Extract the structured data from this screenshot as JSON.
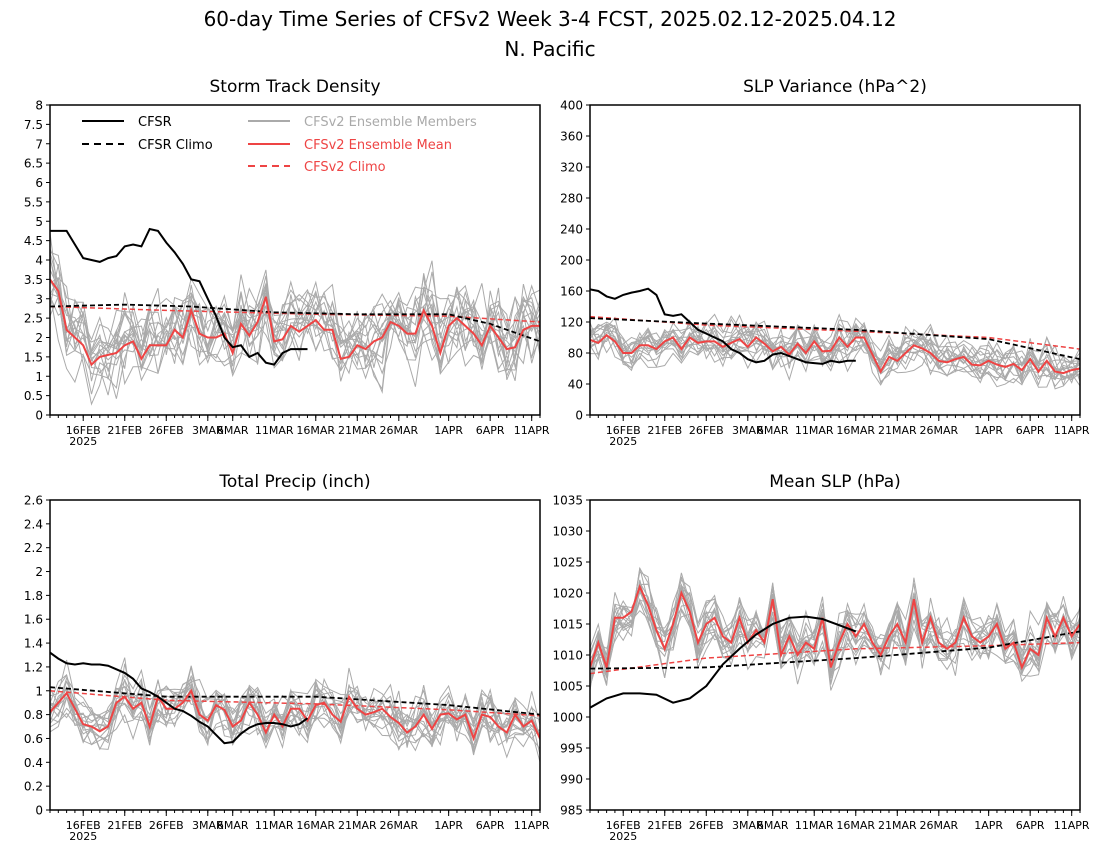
{
  "figure": {
    "title": "60-day Time Series of CFSv2 Week 3-4 FCST, 2025.02.12-2025.04.12",
    "subtitle": "N. Pacific"
  },
  "legend": {
    "entries": [
      {
        "label": "CFSR",
        "color": "#000000",
        "dash": "solid"
      },
      {
        "label": "CFSR Climo",
        "color": "#000000",
        "dash": "dashed"
      },
      {
        "label": "CFSv2 Ensemble Members",
        "color": "#aaaaaa",
        "dash": "solid"
      },
      {
        "label": "CFSv2 Ensemble Mean",
        "color": "#ee4444",
        "dash": "solid"
      },
      {
        "label": "CFSv2 Climo",
        "color": "#ee4444",
        "dash": "dashed"
      }
    ]
  },
  "colors": {
    "cfsr": "#000000",
    "members": "#aaaaaa",
    "ens_mean": "#ee4444",
    "cfsv2_climo": "#ee4444"
  },
  "chart_data": [
    {
      "type": "line",
      "title": "Storm Track Density",
      "xlabel": "",
      "ylabel": "",
      "x_range": [
        "2025-02-12",
        "2025-04-12"
      ],
      "x_ticks": [
        "16FEB",
        "21FEB",
        "26FEB",
        "3MAR",
        "6MAR",
        "11MAR",
        "16MAR",
        "21MAR",
        "26MAR",
        "1APR",
        "6APR",
        "11APR"
      ],
      "x_tick_year": "2025",
      "ylim": [
        0,
        8
      ],
      "y_ticks": [
        "0",
        "0.5",
        "1",
        "1.5",
        "2",
        "2.5",
        "3",
        "3.5",
        "4",
        "4.5",
        "5",
        "5.5",
        "6",
        "6.5",
        "7",
        "7.5",
        "8"
      ],
      "grid": false,
      "legend": "top-left",
      "cfsr": {
        "x": [
          "2025-02-12",
          "2025-02-13",
          "2025-02-14",
          "2025-02-15",
          "2025-02-16",
          "2025-02-17",
          "2025-02-18",
          "2025-02-19",
          "2025-02-20",
          "2025-02-21",
          "2025-02-22",
          "2025-02-23",
          "2025-02-24",
          "2025-02-25",
          "2025-02-26",
          "2025-02-27",
          "2025-02-28",
          "2025-03-01",
          "2025-03-02",
          "2025-03-03",
          "2025-03-04",
          "2025-03-05",
          "2025-03-06",
          "2025-03-07",
          "2025-03-08",
          "2025-03-09",
          "2025-03-10",
          "2025-03-11",
          "2025-03-12",
          "2025-03-13",
          "2025-03-14",
          "2025-03-15"
        ],
        "y": [
          4.75,
          4.75,
          4.75,
          4.4,
          4.05,
          4.0,
          3.95,
          4.05,
          4.1,
          4.35,
          4.4,
          4.35,
          4.8,
          4.75,
          4.45,
          4.2,
          3.9,
          3.5,
          3.45,
          3.0,
          2.55,
          2.0,
          1.75,
          1.8,
          1.5,
          1.6,
          1.35,
          1.3,
          1.6,
          1.7,
          1.7,
          1.7
        ]
      },
      "cfsr_climo": {
        "x": [
          "2025-02-12",
          "2025-02-21",
          "2025-03-01",
          "2025-03-11",
          "2025-03-21",
          "2025-04-01",
          "2025-04-06",
          "2025-04-12"
        ],
        "y": [
          2.8,
          2.85,
          2.8,
          2.65,
          2.6,
          2.6,
          2.35,
          1.9
        ]
      },
      "cfsv2_climo": {
        "x": [
          "2025-02-12",
          "2025-02-26",
          "2025-03-16",
          "2025-04-01",
          "2025-04-12"
        ],
        "y": [
          2.8,
          2.7,
          2.6,
          2.55,
          2.4
        ]
      },
      "ens_mean": {
        "start": "2025-02-12",
        "y": [
          3.5,
          3.2,
          2.2,
          2.0,
          1.8,
          1.3,
          1.5,
          1.55,
          1.6,
          1.8,
          1.9,
          1.45,
          1.8,
          1.8,
          1.8,
          2.2,
          2.0,
          2.7,
          2.1,
          2.0,
          2.0,
          2.1,
          1.6,
          2.35,
          2.05,
          2.4,
          3.05,
          1.9,
          1.95,
          2.3,
          2.15,
          2.3,
          2.45,
          2.2,
          2.2,
          1.45,
          1.5,
          1.8,
          1.7,
          1.9,
          2.0,
          2.4,
          2.3,
          2.1,
          2.1,
          2.7,
          2.3,
          1.6,
          2.3,
          2.5,
          2.3,
          2.1,
          1.8,
          2.3,
          2.0,
          1.7,
          1.75,
          2.2,
          2.3,
          2.3
        ]
      },
      "members": {
        "count": 16,
        "spread": 0.85,
        "seed": 11
      }
    },
    {
      "type": "line",
      "title": "SLP Variance (hPa^2)",
      "xlabel": "",
      "ylabel": "",
      "x_range": [
        "2025-02-12",
        "2025-04-12"
      ],
      "x_ticks": [
        "16FEB",
        "21FEB",
        "26FEB",
        "3MAR",
        "6MAR",
        "11MAR",
        "16MAR",
        "21MAR",
        "26MAR",
        "1APR",
        "6APR",
        "11APR"
      ],
      "x_tick_year": "2025",
      "ylim": [
        0,
        400
      ],
      "y_ticks": [
        "0",
        "40",
        "80",
        "120",
        "160",
        "200",
        "240",
        "280",
        "320",
        "360",
        "400"
      ],
      "grid": false,
      "cfsr": {
        "x": [
          "2025-02-12",
          "2025-02-13",
          "2025-02-14",
          "2025-02-15",
          "2025-02-16",
          "2025-02-17",
          "2025-02-18",
          "2025-02-19",
          "2025-02-20",
          "2025-02-21",
          "2025-02-22",
          "2025-02-23",
          "2025-02-24",
          "2025-02-25",
          "2025-02-26",
          "2025-02-27",
          "2025-02-28",
          "2025-03-01",
          "2025-03-02",
          "2025-03-03",
          "2025-03-04",
          "2025-03-05",
          "2025-03-06",
          "2025-03-07",
          "2025-03-08",
          "2025-03-09",
          "2025-03-10",
          "2025-03-11",
          "2025-03-12",
          "2025-03-13",
          "2025-03-14",
          "2025-03-15",
          "2025-03-16"
        ],
        "y": [
          162,
          160,
          153,
          150,
          155,
          158,
          160,
          163,
          155,
          130,
          128,
          130,
          120,
          110,
          105,
          100,
          95,
          85,
          80,
          72,
          68,
          70,
          78,
          80,
          76,
          72,
          68,
          67,
          66,
          70,
          68,
          70,
          70
        ]
      },
      "cfsr_climo": {
        "x": [
          "2025-02-12",
          "2025-02-26",
          "2025-03-16",
          "2025-04-01",
          "2025-04-12"
        ],
        "y": [
          125,
          118,
          110,
          98,
          72
        ]
      },
      "cfsv2_climo": {
        "x": [
          "2025-02-12",
          "2025-02-26",
          "2025-03-16",
          "2025-04-01",
          "2025-04-12"
        ],
        "y": [
          127,
          116,
          108,
          100,
          85
        ]
      },
      "ens_mean": {
        "start": "2025-02-12",
        "y": [
          97,
          93,
          103,
          95,
          80,
          80,
          90,
          90,
          85,
          95,
          100,
          85,
          100,
          93,
          95,
          95,
          88,
          93,
          98,
          88,
          100,
          92,
          82,
          88,
          78,
          92,
          80,
          95,
          82,
          83,
          100,
          88,
          100,
          100,
          78,
          56,
          75,
          70,
          80,
          90,
          86,
          80,
          70,
          68,
          72,
          75,
          65,
          64,
          70,
          65,
          62,
          66,
          58,
          72,
          56,
          70,
          56,
          54,
          58,
          60
        ]
      },
      "members": {
        "count": 16,
        "spread": 20,
        "seed": 23
      }
    },
    {
      "type": "line",
      "title": "Total Precip (inch)",
      "xlabel": "",
      "ylabel": "",
      "x_range": [
        "2025-02-12",
        "2025-04-12"
      ],
      "x_ticks": [
        "16FEB",
        "21FEB",
        "26FEB",
        "3MAR",
        "6MAR",
        "11MAR",
        "16MAR",
        "21MAR",
        "26MAR",
        "1APR",
        "6APR",
        "11APR"
      ],
      "x_tick_year": "2025",
      "ylim": [
        0,
        2.6
      ],
      "y_ticks": [
        "0",
        "0.2",
        "0.4",
        "0.6",
        "0.8",
        "1",
        "1.2",
        "1.4",
        "1.6",
        "1.8",
        "2",
        "2.2",
        "2.4",
        "2.6"
      ],
      "grid": false,
      "cfsr": {
        "x": [
          "2025-02-12",
          "2025-02-13",
          "2025-02-14",
          "2025-02-15",
          "2025-02-16",
          "2025-02-17",
          "2025-02-18",
          "2025-02-19",
          "2025-02-20",
          "2025-02-21",
          "2025-02-22",
          "2025-02-23",
          "2025-02-24",
          "2025-02-25",
          "2025-02-26",
          "2025-02-27",
          "2025-02-28",
          "2025-03-01",
          "2025-03-02",
          "2025-03-03",
          "2025-03-04",
          "2025-03-05",
          "2025-03-06",
          "2025-03-07",
          "2025-03-08",
          "2025-03-09",
          "2025-03-10",
          "2025-03-11",
          "2025-03-12",
          "2025-03-13",
          "2025-03-14",
          "2025-03-15"
        ],
        "y": [
          1.32,
          1.27,
          1.23,
          1.22,
          1.23,
          1.22,
          1.22,
          1.21,
          1.18,
          1.15,
          1.1,
          1.02,
          0.99,
          0.95,
          0.9,
          0.85,
          0.83,
          0.79,
          0.74,
          0.7,
          0.63,
          0.56,
          0.57,
          0.64,
          0.69,
          0.72,
          0.73,
          0.73,
          0.72,
          0.7,
          0.72,
          0.77
        ]
      },
      "cfsr_climo": {
        "x": [
          "2025-02-12",
          "2025-02-26",
          "2025-03-16",
          "2025-04-01",
          "2025-04-12"
        ],
        "y": [
          1.03,
          0.95,
          0.95,
          0.88,
          0.8
        ]
      },
      "cfsv2_climo": {
        "x": [
          "2025-02-12",
          "2025-02-26",
          "2025-03-16",
          "2025-04-01",
          "2025-04-12"
        ],
        "y": [
          1.0,
          0.92,
          0.89,
          0.84,
          0.79
        ]
      },
      "ens_mean": {
        "start": "2025-02-12",
        "y": [
          0.82,
          0.9,
          0.98,
          0.85,
          0.72,
          0.7,
          0.66,
          0.7,
          0.9,
          0.95,
          0.85,
          0.9,
          0.7,
          0.95,
          0.85,
          0.85,
          0.9,
          1.0,
          0.8,
          0.75,
          0.88,
          0.84,
          0.7,
          0.75,
          0.9,
          0.8,
          0.65,
          0.8,
          0.7,
          0.85,
          0.85,
          0.75,
          0.88,
          0.9,
          0.8,
          0.74,
          0.95,
          0.85,
          0.8,
          0.82,
          0.85,
          0.78,
          0.73,
          0.65,
          0.7,
          0.8,
          0.68,
          0.8,
          0.81,
          0.76,
          0.8,
          0.6,
          0.8,
          0.78,
          0.7,
          0.65,
          0.8,
          0.7,
          0.75,
          0.6
        ]
      },
      "members": {
        "count": 16,
        "spread": 0.17,
        "seed": 37
      }
    },
    {
      "type": "line",
      "title": "Mean SLP (hPa)",
      "xlabel": "",
      "ylabel": "",
      "x_range": [
        "2025-02-12",
        "2025-04-12"
      ],
      "x_ticks": [
        "16FEB",
        "21FEB",
        "26FEB",
        "3MAR",
        "6MAR",
        "11MAR",
        "16MAR",
        "21MAR",
        "26MAR",
        "1APR",
        "6APR",
        "11APR"
      ],
      "x_tick_year": "2025",
      "ylim": [
        985,
        1035
      ],
      "y_ticks": [
        "985",
        "990",
        "995",
        "1000",
        "1005",
        "1010",
        "1015",
        "1020",
        "1025",
        "1030",
        "1035"
      ],
      "grid": false,
      "cfsr": {
        "x": [
          "2025-02-12",
          "2025-02-14",
          "2025-02-16",
          "2025-02-18",
          "2025-02-20",
          "2025-02-22",
          "2025-02-24",
          "2025-02-26",
          "2025-02-28",
          "2025-03-02",
          "2025-03-04",
          "2025-03-06",
          "2025-03-08",
          "2025-03-10",
          "2025-03-12",
          "2025-03-14",
          "2025-03-16"
        ],
        "y": [
          1001.5,
          1003.0,
          1003.8,
          1003.8,
          1003.6,
          1002.3,
          1003.0,
          1005.0,
          1008.5,
          1011.0,
          1013.3,
          1015.0,
          1016.0,
          1016.2,
          1015.8,
          1014.8,
          1013.8
        ]
      },
      "cfsr_climo": {
        "x": [
          "2025-02-12",
          "2025-02-26",
          "2025-03-16",
          "2025-04-01",
          "2025-04-12"
        ],
        "y": [
          1007.8,
          1008.0,
          1009.5,
          1011.2,
          1013.8
        ]
      },
      "cfsv2_climo": {
        "x": [
          "2025-02-12",
          "2025-02-26",
          "2025-03-16",
          "2025-04-01",
          "2025-04-12"
        ],
        "y": [
          1007.0,
          1009.5,
          1011.0,
          1011.5,
          1012.0
        ]
      },
      "ens_mean": {
        "start": "2025-02-12",
        "y": [
          1008,
          1012,
          1008,
          1016,
          1016,
          1017,
          1021,
          1018,
          1014,
          1011,
          1015,
          1020,
          1017,
          1012,
          1015,
          1016,
          1013,
          1012,
          1016,
          1012,
          1014,
          1012,
          1019,
          1010,
          1013,
          1010,
          1012,
          1011,
          1016,
          1008,
          1012,
          1015,
          1013,
          1015,
          1012,
          1010,
          1013,
          1015,
          1012,
          1019,
          1012,
          1016,
          1012,
          1011,
          1012,
          1016,
          1013,
          1012,
          1013,
          1015,
          1011,
          1012,
          1008,
          1011,
          1010,
          1016,
          1013,
          1016,
          1013,
          1015
        ]
      },
      "members": {
        "count": 16,
        "spread": 3.2,
        "seed": 53
      }
    }
  ]
}
